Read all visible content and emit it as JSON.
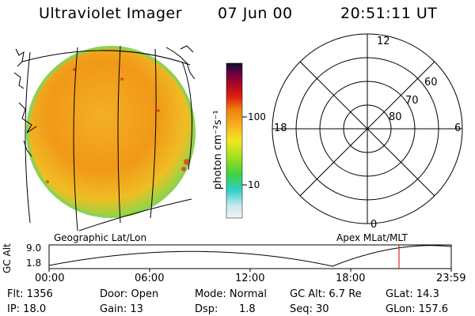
{
  "header": {
    "instrument": "Ultraviolet Imager",
    "date": "07 Jun 00",
    "time": "20:51:11 UT"
  },
  "colorbar": {
    "unit_label": "photon cm⁻²s⁻¹",
    "ticks": [
      "100",
      "10"
    ],
    "scale": "log"
  },
  "polar_plot": {
    "mlt_labels": [
      "12",
      "18",
      "6",
      "0"
    ],
    "mlat_labels": [
      "60",
      "70",
      "80"
    ],
    "caption": "Apex MLat/MLT"
  },
  "image_panel": {
    "caption": "Geographic Lat/Lon"
  },
  "altitude_plot": {
    "ylabel": "GC Alt",
    "y_ticks": [
      "9.0",
      "1.8"
    ],
    "x_ticks": [
      "00:00",
      "06:00",
      "12:00",
      "18:00",
      "23:59"
    ],
    "marker_color": "#cc0000",
    "current_time_marker": "20:51"
  },
  "info": {
    "flt": "Flt: 1356",
    "ip": "IP: 18.0",
    "door": "Door: Open",
    "gain": "Gain: 13",
    "mode": "Mode: Normal",
    "dsp_label": "Dsp:",
    "dsp_value": "1.8",
    "gc_alt": "GC Alt: 6.7 Re",
    "seq": "Seq: 30",
    "glat": "GLat: 14.3",
    "glon": "GLon: 157.6"
  }
}
